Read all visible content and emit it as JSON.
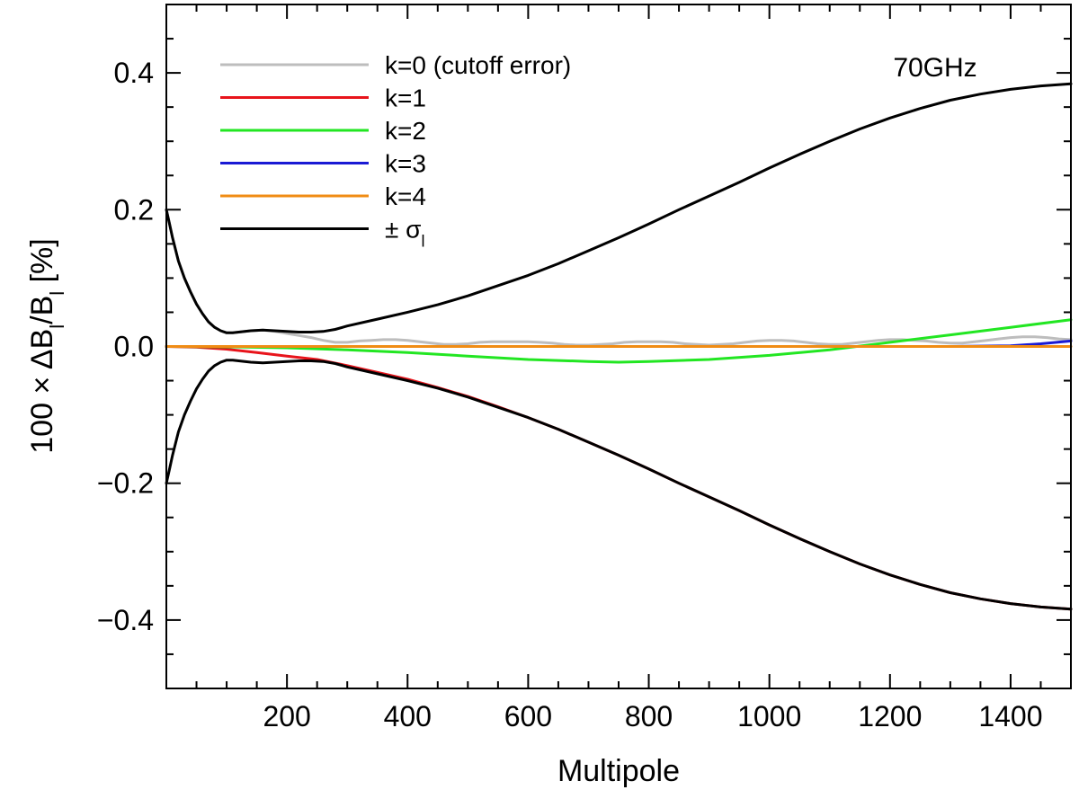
{
  "chart_data": {
    "type": "line",
    "title": "",
    "annotation": "70GHz",
    "xlabel": "Multipole",
    "ylabel": "100 × ΔB_l/B_l [%]",
    "ylabel_parts": {
      "prefix": "100 × ΔB",
      "sub1": "l",
      "mid": "/B",
      "sub2": "l",
      "suffix": " [%]"
    },
    "xlim": [
      0,
      1500
    ],
    "ylim": [
      -0.5,
      0.5
    ],
    "x_major_ticks": [
      200,
      400,
      600,
      800,
      1000,
      1200,
      1400
    ],
    "x_tick_labels": [
      "200",
      "400",
      "600",
      "800",
      "1000",
      "1200",
      "1400"
    ],
    "x_minor_step": 50,
    "y_major_ticks": [
      -0.4,
      -0.2,
      0.0,
      0.2,
      0.4
    ],
    "y_tick_labels": [
      "−0.4",
      "−0.2",
      "0.0",
      "0.2",
      "0.4"
    ],
    "y_minor_step": 0.05,
    "legend_position": "top-left",
    "series": [
      {
        "name": "k=0 (cutoff error)",
        "color": "#bdbdbd",
        "x": [
          0,
          5,
          10,
          20,
          30,
          40,
          50,
          60,
          70,
          80,
          90,
          100,
          110,
          120,
          140,
          160,
          180,
          200,
          220,
          240,
          260,
          280,
          300,
          320,
          340,
          360,
          380,
          400,
          420,
          440,
          460,
          480,
          500,
          520,
          540,
          560,
          580,
          600,
          620,
          640,
          660,
          680,
          700,
          720,
          740,
          760,
          780,
          800,
          820,
          840,
          860,
          880,
          900,
          920,
          940,
          960,
          980,
          1000,
          1020,
          1040,
          1060,
          1080,
          1100,
          1120,
          1140,
          1160,
          1180,
          1200,
          1220,
          1240,
          1260,
          1280,
          1300,
          1320,
          1340,
          1360,
          1380,
          1400,
          1420,
          1440,
          1460,
          1480,
          1500
        ],
        "y": [
          0.2,
          0.18,
          0.16,
          0.125,
          0.1,
          0.08,
          0.062,
          0.048,
          0.036,
          0.028,
          0.023,
          0.02,
          0.02,
          0.021,
          0.023,
          0.024,
          0.022,
          0.019,
          0.016,
          0.013,
          0.009,
          0.006,
          0.006,
          0.008,
          0.009,
          0.01,
          0.01,
          0.009,
          0.007,
          0.005,
          0.003,
          0.003,
          0.004,
          0.006,
          0.007,
          0.007,
          0.007,
          0.007,
          0.006,
          0.005,
          0.003,
          0.002,
          0.002,
          0.003,
          0.004,
          0.006,
          0.007,
          0.007,
          0.007,
          0.006,
          0.004,
          0.003,
          0.002,
          0.003,
          0.004,
          0.006,
          0.008,
          0.009,
          0.009,
          0.008,
          0.006,
          0.004,
          0.003,
          0.003,
          0.005,
          0.007,
          0.009,
          0.01,
          0.01,
          0.009,
          0.008,
          0.006,
          0.005,
          0.005,
          0.007,
          0.009,
          0.011,
          0.013,
          0.014,
          0.014,
          0.013,
          0.011,
          0.01
        ]
      },
      {
        "name": "k=1",
        "color": "#e8141b",
        "x": [
          0,
          50,
          100,
          150,
          200,
          250,
          300,
          350,
          400,
          450,
          500,
          550,
          600,
          650,
          700,
          750,
          800,
          850,
          900,
          950,
          1000,
          1050,
          1100,
          1150,
          1200,
          1250,
          1300,
          1350,
          1400,
          1450,
          1500
        ],
        "y": [
          0.0,
          -0.001,
          -0.004,
          -0.009,
          -0.014,
          -0.019,
          -0.028,
          -0.038,
          -0.048,
          -0.06,
          -0.073,
          -0.088,
          -0.104,
          -0.121,
          -0.14,
          -0.159,
          -0.179,
          -0.2,
          -0.22,
          -0.24,
          -0.261,
          -0.281,
          -0.3,
          -0.318,
          -0.334,
          -0.348,
          -0.36,
          -0.369,
          -0.376,
          -0.381,
          -0.384
        ]
      },
      {
        "name": "k=2",
        "color": "#22e622",
        "x": [
          0,
          100,
          200,
          300,
          400,
          500,
          600,
          700,
          750,
          800,
          900,
          1000,
          1100,
          1200,
          1300,
          1400,
          1500
        ],
        "y": [
          0.0,
          -0.0005,
          -0.002,
          -0.005,
          -0.009,
          -0.014,
          -0.019,
          -0.022,
          -0.023,
          -0.022,
          -0.019,
          -0.013,
          -0.005,
          0.006,
          0.017,
          0.028,
          0.039
        ]
      },
      {
        "name": "k=3",
        "color": "#1a1ad4",
        "x": [
          0,
          100,
          200,
          300,
          400,
          500,
          600,
          700,
          800,
          900,
          1000,
          1100,
          1200,
          1300,
          1400,
          1450,
          1500
        ],
        "y": [
          0.0,
          0.0,
          0.0,
          0.0,
          0.0,
          0.0,
          0.0,
          0.0,
          0.0,
          0.0,
          0.0,
          0.0,
          0.0,
          0.0,
          0.001,
          0.004,
          0.008
        ]
      },
      {
        "name": "k=4",
        "color": "#f08c14",
        "x": [
          0,
          500,
          1000,
          1500
        ],
        "y": [
          0.0,
          0.0,
          0.0,
          0.0
        ]
      },
      {
        "name": "± σ",
        "name_subscript": "l",
        "color": "#000000",
        "mirrored": true,
        "x": [
          0,
          5,
          10,
          20,
          30,
          40,
          50,
          60,
          70,
          80,
          90,
          100,
          110,
          120,
          140,
          160,
          180,
          200,
          220,
          240,
          260,
          280,
          300,
          350,
          400,
          450,
          500,
          550,
          600,
          650,
          700,
          750,
          800,
          850,
          900,
          950,
          1000,
          1050,
          1100,
          1150,
          1200,
          1250,
          1300,
          1350,
          1400,
          1450,
          1500
        ],
        "y": [
          0.2,
          0.18,
          0.16,
          0.125,
          0.1,
          0.08,
          0.062,
          0.048,
          0.036,
          0.028,
          0.023,
          0.02,
          0.02,
          0.021,
          0.023,
          0.024,
          0.023,
          0.022,
          0.021,
          0.021,
          0.022,
          0.025,
          0.03,
          0.04,
          0.05,
          0.061,
          0.074,
          0.089,
          0.104,
          0.121,
          0.14,
          0.159,
          0.179,
          0.2,
          0.22,
          0.24,
          0.261,
          0.281,
          0.3,
          0.318,
          0.334,
          0.348,
          0.36,
          0.369,
          0.376,
          0.381,
          0.384
        ]
      }
    ]
  }
}
